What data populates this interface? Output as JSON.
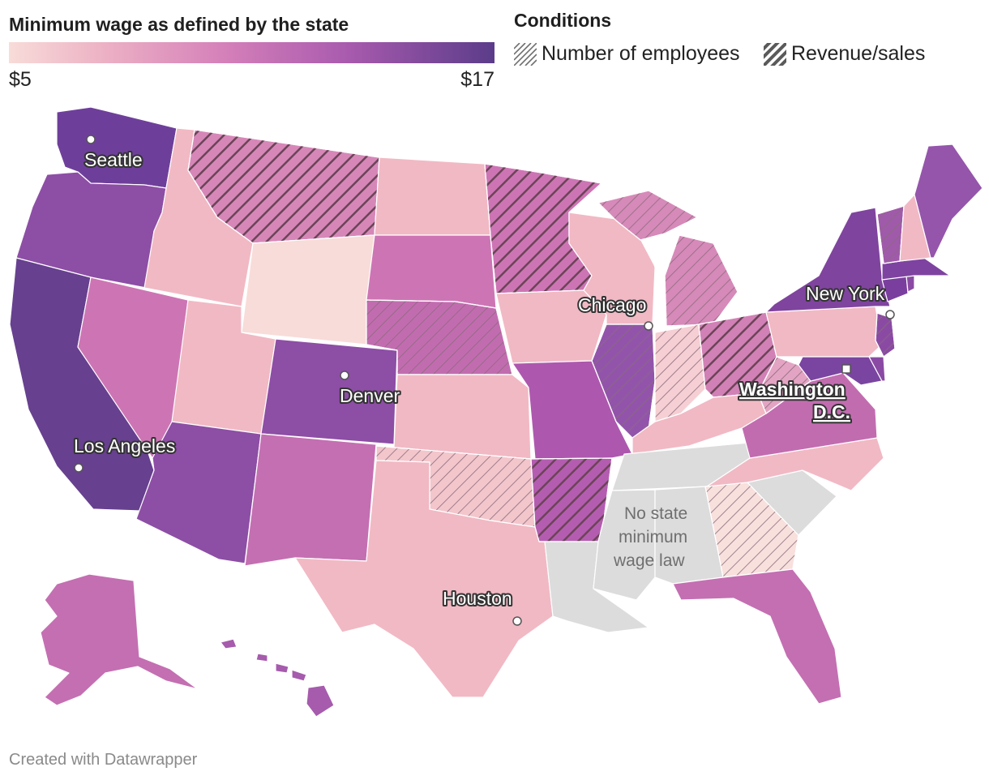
{
  "scale": {
    "title": "Minimum wage as defined by the state",
    "min_label": "$5",
    "max_label": "$17",
    "colors": [
      "#f8dcd9",
      "#f1b9c4",
      "#e39cbd",
      "#cf74b5",
      "#ad58ae",
      "#8a4aa4",
      "#5e3b8b"
    ]
  },
  "conditions": {
    "title": "Conditions",
    "items": [
      {
        "label": "Number of employees",
        "pattern": "thin-hatch"
      },
      {
        "label": "Revenue/sales",
        "pattern": "thick-hatch"
      }
    ]
  },
  "cities": {
    "seattle": "Seattle",
    "los_angeles": "Los Angeles",
    "denver": "Denver",
    "chicago": "Chicago",
    "new_york": "New York",
    "houston": "Houston",
    "dc_line1": "Washington",
    "dc_line2": "D.C."
  },
  "no_law": {
    "line1": "No state",
    "line2": "minimum",
    "line3": "wage law",
    "color": "#dcdcdc"
  },
  "footer": "Created with Datawrapper"
}
